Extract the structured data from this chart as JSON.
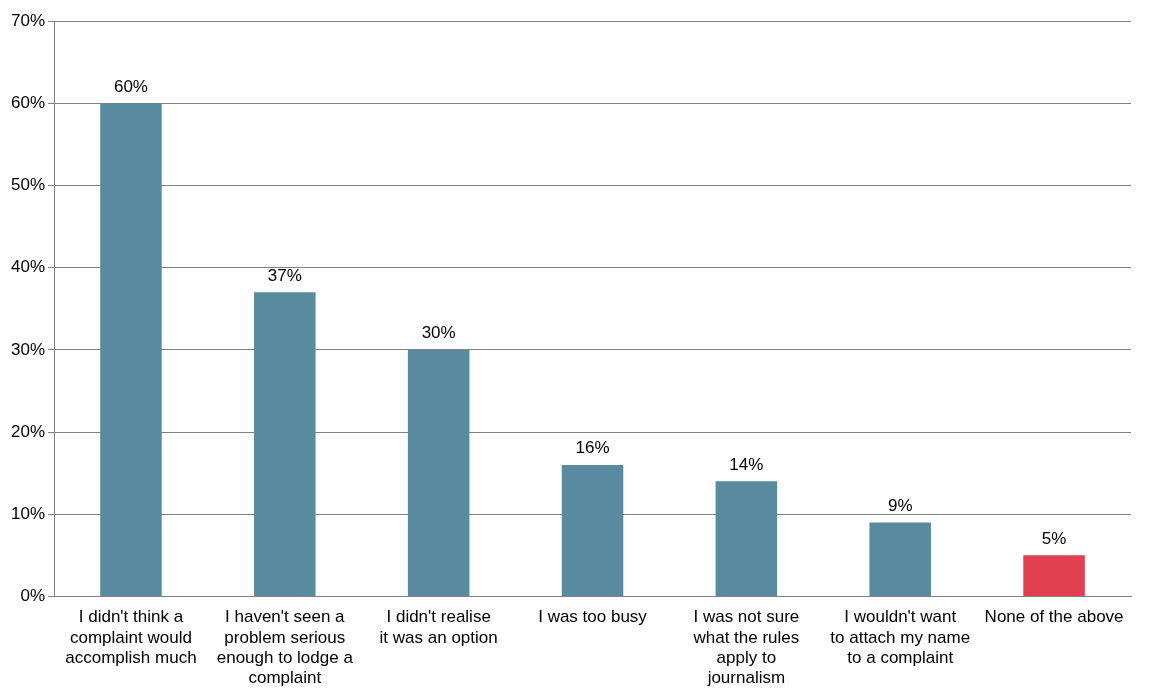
{
  "chart_data": {
    "type": "bar",
    "categories": [
      "I didn't think a complaint would accomplish much",
      "I haven't seen a problem serious enough to lodge a complaint",
      "I didn't realise it was an option",
      "I was too busy",
      "I was not sure what the rules apply to journalism",
      "I wouldn't want to attach my name to a complaint",
      "None of the above"
    ],
    "values": [
      60,
      37,
      30,
      16,
      14,
      9,
      5
    ],
    "value_labels": [
      "60%",
      "37%",
      "30%",
      "16%",
      "14%",
      "9%",
      "5%"
    ],
    "colors": [
      "#588ba0",
      "#588ba0",
      "#588ba0",
      "#588ba0",
      "#588ba0",
      "#588ba0",
      "#e0404f"
    ],
    "ylim": [
      0,
      70
    ],
    "yticks": [
      {
        "value": 0,
        "label": "0%"
      },
      {
        "value": 10,
        "label": "10%"
      },
      {
        "value": 20,
        "label": "20%"
      },
      {
        "value": 30,
        "label": "30%"
      },
      {
        "value": 40,
        "label": "40%"
      },
      {
        "value": 50,
        "label": "50%"
      },
      {
        "value": 60,
        "label": "60%"
      },
      {
        "value": 70,
        "label": "70%"
      }
    ],
    "grid": "y"
  }
}
